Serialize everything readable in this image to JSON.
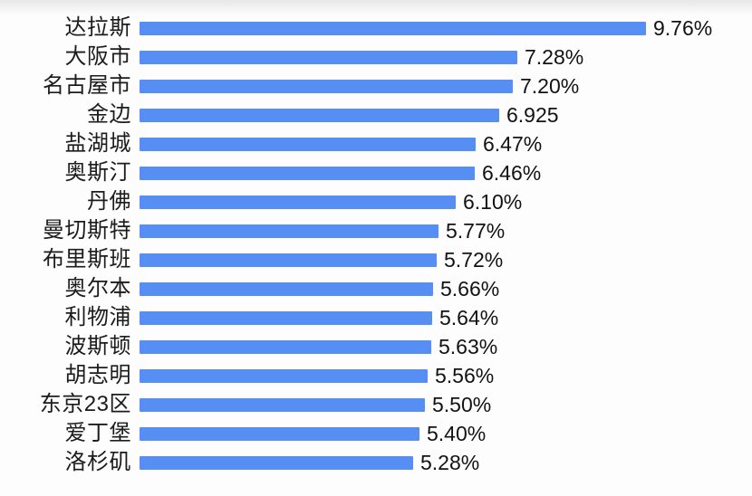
{
  "chart_data": {
    "type": "bar",
    "orientation": "horizontal",
    "title": "",
    "xlabel": "",
    "ylabel": "",
    "xlim": [
      0,
      9.76
    ],
    "grid": false,
    "legend": false,
    "bar_color": "#578ef4",
    "text_color": "#1c1c1e",
    "categories": [
      "达拉斯",
      "大阪市",
      "名古屋市",
      "金边",
      "盐湖城",
      "奥斯汀",
      "丹佛",
      "曼切斯特",
      "布里斯班",
      "奥尔本",
      "利物浦",
      "波斯顿",
      "胡志明",
      "东京23区",
      "爱丁堡",
      "洛杉矶"
    ],
    "values": [
      9.76,
      7.28,
      7.2,
      6.925,
      6.47,
      6.46,
      6.1,
      5.77,
      5.72,
      5.66,
      5.64,
      5.63,
      5.56,
      5.5,
      5.4,
      5.28
    ],
    "value_labels": [
      "9.76%",
      "7.28%",
      "7.20%",
      "6.925",
      "6.47%",
      "6.46%",
      "6.10%",
      "5.77%",
      "5.72%",
      "5.66%",
      "5.64%",
      "5.63%",
      "5.56%",
      "5.50%",
      "5.40%",
      "5.28%"
    ]
  }
}
